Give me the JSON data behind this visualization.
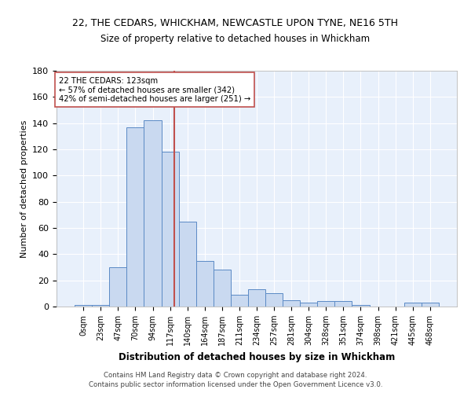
{
  "title": "22, THE CEDARS, WHICKHAM, NEWCASTLE UPON TYNE, NE16 5TH",
  "subtitle": "Size of property relative to detached houses in Whickham",
  "xlabel": "Distribution of detached houses by size in Whickham",
  "ylabel": "Number of detached properties",
  "bar_labels": [
    "0sqm",
    "23sqm",
    "47sqm",
    "70sqm",
    "94sqm",
    "117sqm",
    "140sqm",
    "164sqm",
    "187sqm",
    "211sqm",
    "234sqm",
    "257sqm",
    "281sqm",
    "304sqm",
    "328sqm",
    "351sqm",
    "374sqm",
    "398sqm",
    "421sqm",
    "445sqm",
    "468sqm"
  ],
  "bar_values": [
    1,
    1,
    30,
    137,
    142,
    118,
    65,
    35,
    28,
    9,
    13,
    10,
    5,
    3,
    4,
    4,
    1,
    0,
    0,
    3,
    3
  ],
  "bar_color": "#c9d9f0",
  "bar_edge_color": "#5b8ac5",
  "background_color": "#e8f0fb",
  "grid_color": "#ffffff",
  "vline_x": 5.26,
  "vline_color": "#c0504d",
  "annotation_text": "22 THE CEDARS: 123sqm\n← 57% of detached houses are smaller (342)\n42% of semi-detached houses are larger (251) →",
  "annotation_box_color": "#ffffff",
  "annotation_box_edge": "#c0504d",
  "footer_line1": "Contains HM Land Registry data © Crown copyright and database right 2024.",
  "footer_line2": "Contains public sector information licensed under the Open Government Licence v3.0.",
  "ylim": [
    0,
    180
  ],
  "yticks": [
    0,
    20,
    40,
    60,
    80,
    100,
    120,
    140,
    160,
    180
  ]
}
